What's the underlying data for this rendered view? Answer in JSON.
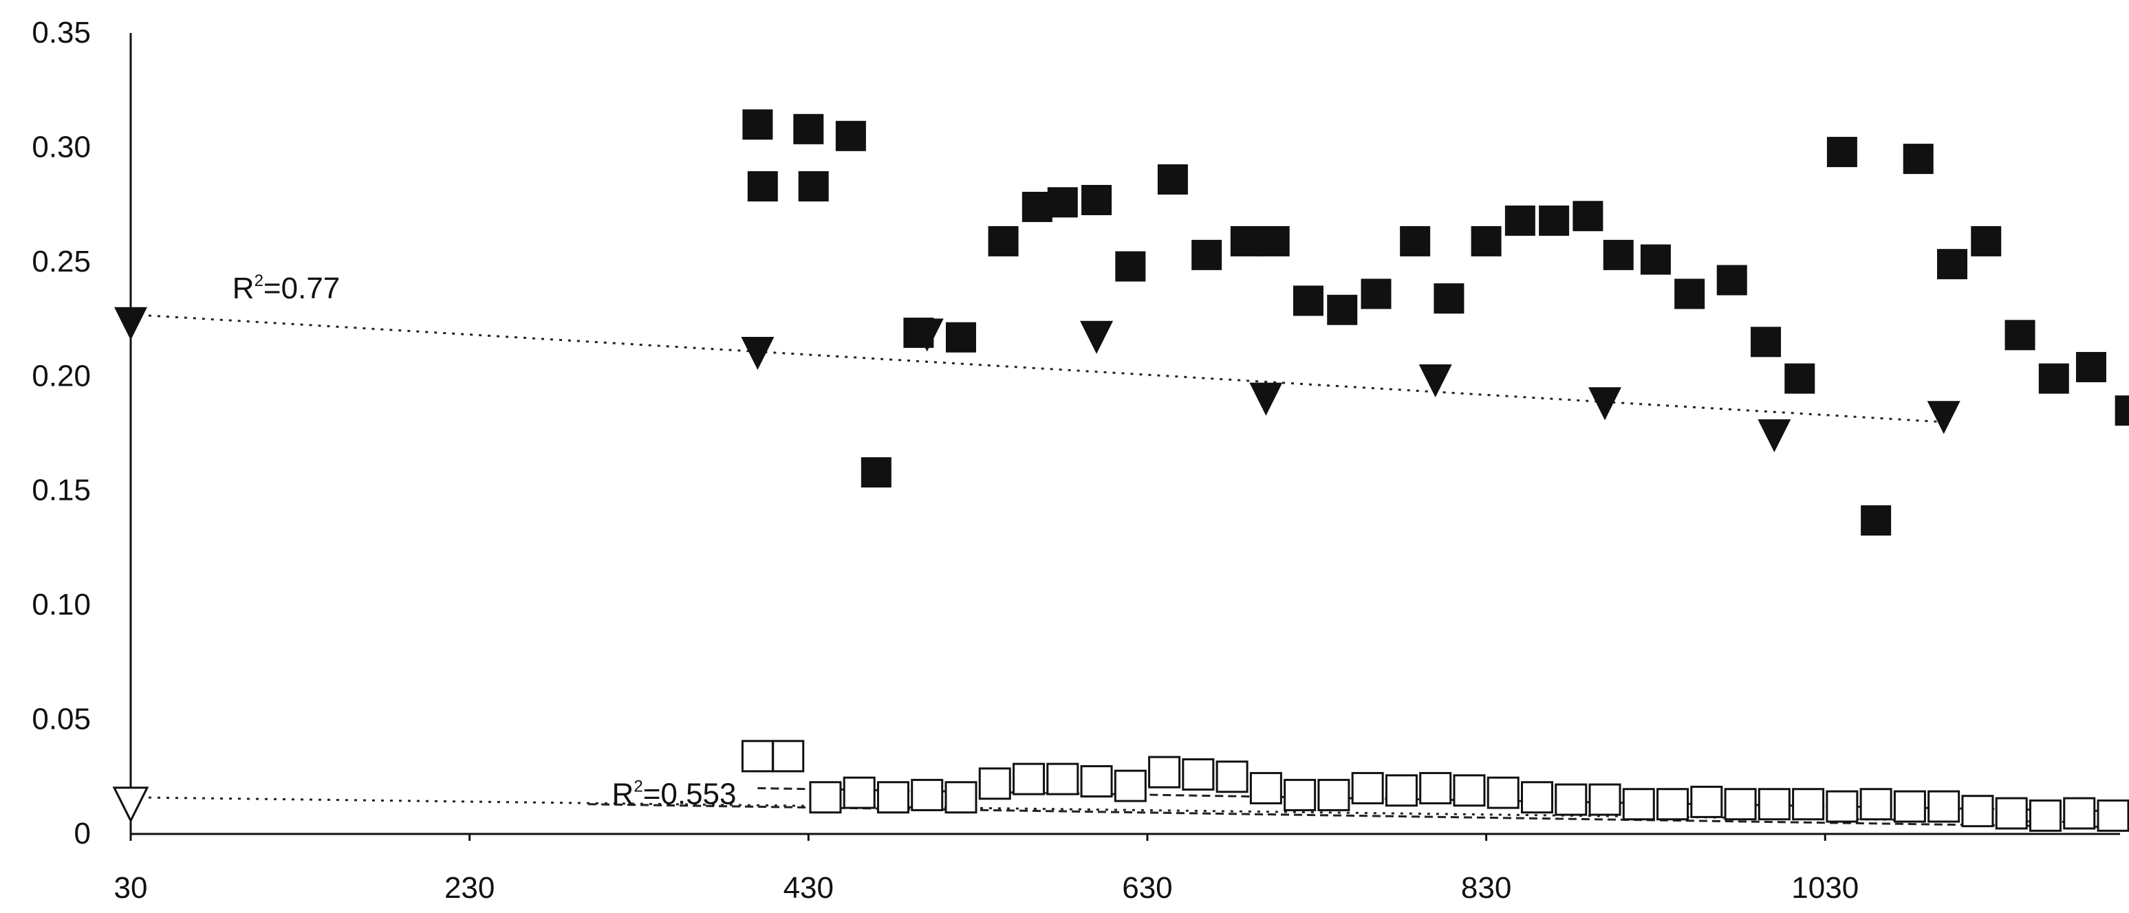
{
  "chart_data": {
    "type": "scatter",
    "xlim": [
      30,
      1200
    ],
    "ylim": [
      0,
      0.35
    ],
    "x_ticks": [
      "30",
      "230",
      "430",
      "630",
      "830",
      "1030"
    ],
    "y_ticks": [
      "0",
      "0.05",
      "0.10",
      "0.15",
      "0.20",
      "0.25",
      "0.30",
      "0.35"
    ],
    "grid": false,
    "legend": "none",
    "annotations": [
      {
        "r2": "R",
        "sup": "2",
        "text": "=0.77",
        "x": 90,
        "y": 0.234
      },
      {
        "r2": "R",
        "sup": "2",
        "text": "=0.553",
        "x": 314,
        "y": 0.013
      }
    ],
    "series": [
      {
        "marker": "filled-square",
        "color": "#111111",
        "points": [
          [
            400,
            0.31
          ],
          [
            403,
            0.283
          ],
          [
            430,
            0.308
          ],
          [
            433,
            0.283
          ],
          [
            455,
            0.305
          ],
          [
            470,
            0.158
          ],
          [
            495,
            0.219
          ],
          [
            520,
            0.217
          ],
          [
            545,
            0.259
          ],
          [
            565,
            0.274
          ],
          [
            580,
            0.276
          ],
          [
            600,
            0.277
          ],
          [
            620,
            0.248
          ],
          [
            645,
            0.286
          ],
          [
            665,
            0.253
          ],
          [
            688,
            0.259
          ],
          [
            705,
            0.259
          ],
          [
            725,
            0.233
          ],
          [
            745,
            0.229
          ],
          [
            765,
            0.236
          ],
          [
            788,
            0.259
          ],
          [
            808,
            0.234
          ],
          [
            830,
            0.259
          ],
          [
            850,
            0.268
          ],
          [
            870,
            0.268
          ],
          [
            890,
            0.27
          ],
          [
            908,
            0.253
          ],
          [
            930,
            0.251
          ],
          [
            950,
            0.236
          ],
          [
            975,
            0.242
          ],
          [
            995,
            0.215
          ],
          [
            1015,
            0.199
          ],
          [
            1040,
            0.298
          ],
          [
            1060,
            0.137
          ],
          [
            1085,
            0.295
          ],
          [
            1105,
            0.249
          ],
          [
            1125,
            0.259
          ],
          [
            1145,
            0.218
          ],
          [
            1165,
            0.199
          ],
          [
            1187,
            0.204
          ],
          [
            1210,
            0.185
          ]
        ]
      },
      {
        "marker": "filled-triangle",
        "color": "#111111",
        "points": [
          [
            30,
            0.223
          ],
          [
            400,
            0.21
          ],
          [
            500,
            0.218
          ],
          [
            600,
            0.217
          ],
          [
            700,
            0.19
          ],
          [
            800,
            0.198
          ],
          [
            900,
            0.188
          ],
          [
            1000,
            0.174
          ],
          [
            1100,
            0.182
          ]
        ]
      },
      {
        "marker": "open-square",
        "color": "#111111",
        "points": [
          [
            400,
            0.034
          ],
          [
            418,
            0.034
          ],
          [
            440,
            0.016
          ],
          [
            460,
            0.018
          ],
          [
            480,
            0.016
          ],
          [
            500,
            0.017
          ],
          [
            520,
            0.016
          ],
          [
            540,
            0.022
          ],
          [
            560,
            0.024
          ],
          [
            580,
            0.024
          ],
          [
            600,
            0.023
          ],
          [
            620,
            0.021
          ],
          [
            640,
            0.027
          ],
          [
            660,
            0.026
          ],
          [
            680,
            0.025
          ],
          [
            700,
            0.02
          ],
          [
            720,
            0.017
          ],
          [
            740,
            0.017
          ],
          [
            760,
            0.02
          ],
          [
            780,
            0.019
          ],
          [
            800,
            0.02
          ],
          [
            820,
            0.019
          ],
          [
            840,
            0.018
          ],
          [
            860,
            0.016
          ],
          [
            880,
            0.015
          ],
          [
            900,
            0.015
          ],
          [
            920,
            0.013
          ],
          [
            940,
            0.013
          ],
          [
            960,
            0.014
          ],
          [
            980,
            0.013
          ],
          [
            1000,
            0.013
          ],
          [
            1020,
            0.013
          ],
          [
            1040,
            0.012
          ],
          [
            1060,
            0.013
          ],
          [
            1080,
            0.012
          ],
          [
            1100,
            0.012
          ],
          [
            1120,
            0.01
          ],
          [
            1140,
            0.009
          ],
          [
            1160,
            0.008
          ],
          [
            1180,
            0.009
          ],
          [
            1200,
            0.008
          ]
        ]
      },
      {
        "marker": "open-triangle",
        "color": "#111111",
        "points": [
          [
            30,
            0.013
          ]
        ]
      }
    ],
    "trendlines": [
      {
        "style": "dotted",
        "x": [
          30,
          1100
        ],
        "y": [
          0.227,
          0.18
        ]
      },
      {
        "style": "dotted",
        "x": [
          30,
          1200
        ],
        "y": [
          0.016,
          0.005
        ]
      },
      {
        "style": "dashed",
        "x": [
          400,
          1200
        ],
        "y": [
          0.02,
          0.01
        ]
      },
      {
        "style": "dashed",
        "x": [
          300,
          1200
        ],
        "y": [
          0.013,
          0.003
        ]
      }
    ]
  }
}
